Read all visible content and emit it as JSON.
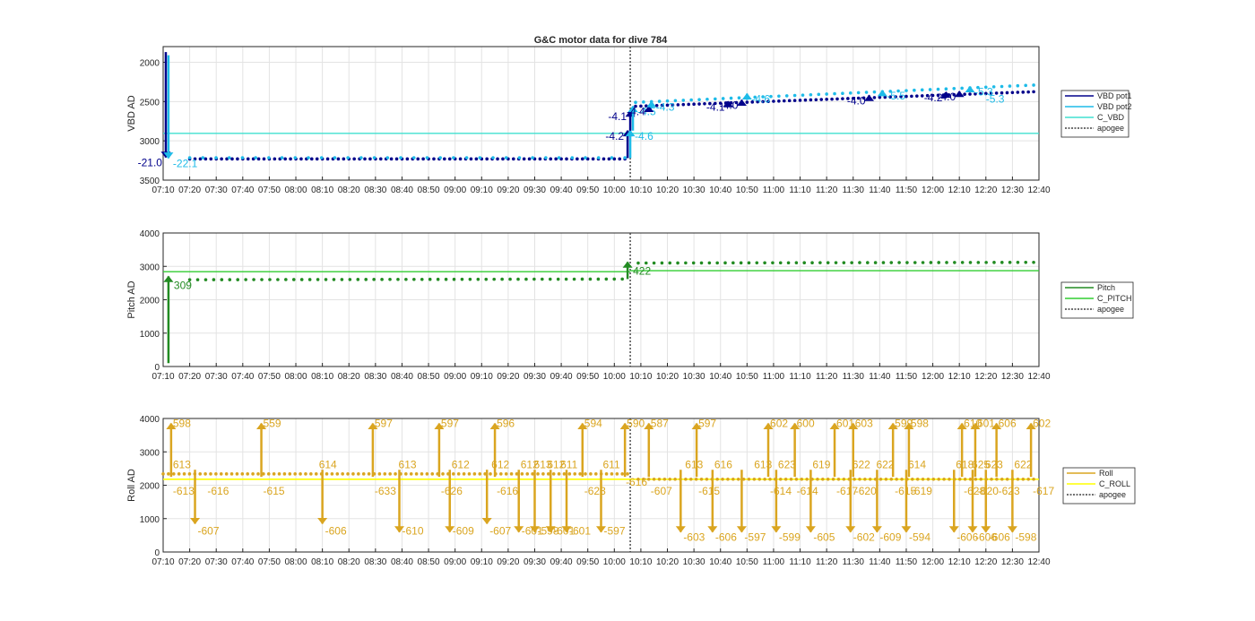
{
  "title": "G&C motor data for dive 784",
  "x_ticks": [
    "07:10",
    "07:20",
    "07:30",
    "07:40",
    "07:50",
    "08:00",
    "08:10",
    "08:20",
    "08:30",
    "08:40",
    "08:50",
    "09:00",
    "09:10",
    "09:20",
    "09:30",
    "09:40",
    "09:50",
    "10:00",
    "10:10",
    "10:20",
    "10:30",
    "10:40",
    "10:50",
    "11:00",
    "11:10",
    "11:20",
    "11:30",
    "11:40",
    "11:50",
    "12:00",
    "12:10",
    "12:20",
    "12:30",
    "12:40"
  ],
  "colors": {
    "vbd1": "#00008b",
    "vbd2": "#1ebbe8",
    "cvbd": "#40e0d0",
    "pitch": "#228b22",
    "cpitch": "#32cd32",
    "roll": "#daa520",
    "croll": "#ffff00",
    "apogee": "#404040"
  },
  "chart_data": [
    {
      "type": "scatter",
      "ylabel": "VBD AD",
      "y_ticks": [
        "2000",
        "2500",
        "3000",
        "3500"
      ],
      "ylim": [
        3500,
        1800
      ],
      "y_reversed": true,
      "xlim": [
        "07:10",
        "12:40"
      ],
      "grid": true,
      "legend_position": "right",
      "legend": [
        "VBD pot1",
        "VBD pot2",
        "C_VBD",
        "apogee"
      ],
      "apogee_time": "10:06",
      "reference_line": {
        "name": "C_VBD",
        "y": 2905
      },
      "series": [
        {
          "name": "VBD pot1",
          "segments": [
            {
              "x": [
                "07:20",
                "10:04"
              ],
              "y": [
                3230,
                3230
              ]
            },
            {
              "x": [
                "10:08",
                "12:38"
              ],
              "y": [
                2560,
                2375
              ]
            }
          ]
        },
        {
          "name": "VBD pot2",
          "segments": [
            {
              "x": [
                "07:20",
                "10:04"
              ],
              "y": [
                3215,
                3215
              ]
            },
            {
              "x": [
                "10:08",
                "12:38"
              ],
              "y": [
                2510,
                2290
              ]
            }
          ]
        }
      ],
      "arrows": [
        {
          "series": "VBD pot1",
          "x": "07:11",
          "y0": 1870,
          "y1": 3210,
          "label": "-21.0",
          "label_side": "left"
        },
        {
          "series": "VBD pot2",
          "x": "07:12",
          "y0": 1910,
          "y1": 3220,
          "label": "-22.1",
          "label_side": "right"
        },
        {
          "series": "VBD pot1",
          "x": "10:05",
          "y0": 3220,
          "y1": 2870,
          "label": "-4.2",
          "label_side": "left"
        },
        {
          "series": "VBD pot2",
          "x": "10:06",
          "y0": 3220,
          "y1": 2870,
          "label": "-4.6",
          "label_side": "right"
        },
        {
          "series": "VBD pot1",
          "x": "10:06",
          "y0": 2870,
          "y1": 2620,
          "label": "-4.1",
          "label_side": "left"
        },
        {
          "series": "VBD pot2",
          "x": "10:07",
          "y0": 2870,
          "y1": 2560,
          "label": "-4.5",
          "label_side": "right"
        },
        {
          "series": "VBD pot1",
          "x": "10:13",
          "y0": 2620,
          "y1": 2560,
          "label": "-4.4",
          "label_side": "left"
        },
        {
          "series": "VBD pot2",
          "x": "10:14",
          "y0": 2580,
          "y1": 2500,
          "label": "-4.3",
          "label_side": "right"
        },
        {
          "series": "VBD pot1",
          "x": "10:43",
          "y0": 2560,
          "y1": 2500,
          "label": "-4.1",
          "label_side": "left"
        },
        {
          "series": "VBD pot1",
          "x": "10:48",
          "y0": 2540,
          "y1": 2480,
          "label": "-4.0",
          "label_side": "left"
        },
        {
          "series": "VBD pot2",
          "x": "10:50",
          "y0": 2480,
          "y1": 2400,
          "label": "-4.6",
          "label_side": "right"
        },
        {
          "series": "VBD pot1",
          "x": "11:36",
          "y0": 2470,
          "y1": 2420,
          "label": "-4.0",
          "label_side": "left"
        },
        {
          "series": "VBD pot2",
          "x": "11:41",
          "y0": 2430,
          "y1": 2360,
          "label": "-5.5",
          "label_side": "right"
        },
        {
          "series": "VBD pot1",
          "x": "12:05",
          "y0": 2430,
          "y1": 2380,
          "label": "-4.2",
          "label_side": "left"
        },
        {
          "series": "VBD pot1",
          "x": "12:10",
          "y0": 2420,
          "y1": 2370,
          "label": "-4.0",
          "label_side": "left"
        },
        {
          "series": "VBD pot2",
          "x": "12:14",
          "y0": 2380,
          "y1": 2310,
          "label": "-5.3",
          "label_side": "right"
        }
      ],
      "extra_labels": [
        {
          "series": "VBD pot2",
          "x": "12:20",
          "y": 2420,
          "label": "-5.3"
        }
      ]
    },
    {
      "type": "scatter",
      "ylabel": "Pitch AD",
      "y_ticks": [
        "0",
        "1000",
        "2000",
        "3000",
        "4000"
      ],
      "ylim": [
        0,
        4000
      ],
      "xlim": [
        "07:10",
        "12:40"
      ],
      "grid": true,
      "legend_position": "right",
      "legend": [
        "Pitch",
        "C_PITCH",
        "apogee"
      ],
      "apogee_time": "10:06",
      "reference_lines": [
        {
          "name": "C_PITCH",
          "x": [
            "07:10",
            "10:06"
          ],
          "y": 2840
        },
        {
          "name": "C_PITCH",
          "x": [
            "10:06",
            "12:40"
          ],
          "y": 2870
        }
      ],
      "series": [
        {
          "name": "Pitch",
          "segments": [
            {
              "x": [
                "07:20",
                "10:03"
              ],
              "y": [
                2600,
                2620
              ]
            },
            {
              "x": [
                "10:09",
                "12:38"
              ],
              "y": [
                3100,
                3120
              ]
            }
          ]
        }
      ],
      "arrows": [
        {
          "series": "Pitch",
          "x": "07:12",
          "y0": 100,
          "y1": 2700,
          "label": "309",
          "label_side": "right"
        },
        {
          "series": "Pitch",
          "x": "10:05",
          "y0": 2620,
          "y1": 3130,
          "label": "422",
          "label_side": "right"
        }
      ]
    },
    {
      "type": "scatter",
      "ylabel": "Roll AD",
      "y_ticks": [
        "0",
        "1000",
        "2000",
        "3000",
        "4000"
      ],
      "ylim": [
        0,
        4000
      ],
      "xlim": [
        "07:10",
        "12:40"
      ],
      "grid": true,
      "legend_position": "right",
      "legend": [
        "Roll",
        "C_ROLL",
        "apogee"
      ],
      "apogee_time": "10:06",
      "reference_line": {
        "name": "C_ROLL",
        "y": 2180
      },
      "series": [
        {
          "name": "Roll",
          "segments": [
            {
              "x": [
                "07:10",
                "10:05"
              ],
              "y": [
                2340,
                2340
              ]
            },
            {
              "x": [
                "10:09",
                "12:38"
              ],
              "y": [
                2180,
                2180
              ]
            }
          ]
        }
      ],
      "pairs": [
        {
          "x": "07:13",
          "top": "598",
          "bot": "-613"
        },
        {
          "x": "07:26",
          "top": "",
          "bot": "-616"
        },
        {
          "x": "07:47",
          "top": "559",
          "bot": "-615"
        },
        {
          "x": "08:29",
          "top": "597",
          "bot": "-633"
        },
        {
          "x": "08:54",
          "top": "597",
          "bot": "-626"
        },
        {
          "x": "09:15",
          "top": "596",
          "bot": "-616"
        },
        {
          "x": "09:48",
          "top": "594",
          "bot": "-623"
        },
        {
          "x": "10:04",
          "top": "590",
          "bot": ""
        },
        {
          "x": "10:13",
          "top": "587",
          "bot": "-607"
        },
        {
          "x": "10:31",
          "top": "597",
          "bot": "-615"
        },
        {
          "x": "10:58",
          "top": "602",
          "bot": "-614"
        },
        {
          "x": "11:08",
          "top": "600",
          "bot": "-614"
        },
        {
          "x": "11:23",
          "top": "601",
          "bot": "-617"
        },
        {
          "x": "11:30",
          "top": "603",
          "bot": "-620"
        },
        {
          "x": "11:45",
          "top": "599",
          "bot": "-615"
        },
        {
          "x": "11:51",
          "top": "598",
          "bot": "-619"
        },
        {
          "x": "12:11",
          "top": "610",
          "bot": "-628"
        },
        {
          "x": "12:16",
          "top": "601",
          "bot": "-620"
        },
        {
          "x": "12:24",
          "top": "606",
          "bot": "-623"
        },
        {
          "x": "12:37",
          "top": "602",
          "bot": "-617"
        }
      ],
      "drops": [
        {
          "x": "07:22",
          "label": "-607"
        },
        {
          "x": "08:10",
          "label": "-606"
        },
        {
          "x": "08:39",
          "label": "-610"
        },
        {
          "x": "08:58",
          "label": "-609"
        },
        {
          "x": "09:12",
          "label": "-607"
        },
        {
          "x": "09:24",
          "label": "-601"
        },
        {
          "x": "09:30",
          "label": "-598"
        },
        {
          "x": "09:36",
          "label": "-601"
        },
        {
          "x": "09:42",
          "label": "-601"
        },
        {
          "x": "09:55",
          "label": "-597"
        },
        {
          "x": "10:25",
          "label": "-603"
        },
        {
          "x": "10:37",
          "label": "-606"
        },
        {
          "x": "10:48",
          "label": "-597"
        },
        {
          "x": "11:01",
          "label": "-599"
        },
        {
          "x": "11:14",
          "label": "-605"
        },
        {
          "x": "11:29",
          "label": "-602"
        },
        {
          "x": "11:39",
          "label": "-609"
        },
        {
          "x": "11:50",
          "label": "-594"
        },
        {
          "x": "12:08",
          "label": "-606"
        },
        {
          "x": "12:15",
          "label": "-606"
        },
        {
          "x": "12:20",
          "label": "-606"
        },
        {
          "x": "12:30",
          "label": "-598"
        }
      ],
      "mid_labels": [
        {
          "x": "07:13",
          "label": "613"
        },
        {
          "x": "08:08",
          "label": "614"
        },
        {
          "x": "08:38",
          "label": "613"
        },
        {
          "x": "08:58",
          "label": "612"
        },
        {
          "x": "09:13",
          "label": "612"
        },
        {
          "x": "09:24",
          "label": "612"
        },
        {
          "x": "09:29",
          "label": "613"
        },
        {
          "x": "09:34",
          "label": "612"
        },
        {
          "x": "09:39",
          "label": "611"
        },
        {
          "x": "09:55",
          "label": "611"
        },
        {
          "x": "10:26",
          "label": "613"
        },
        {
          "x": "10:37",
          "label": "616"
        },
        {
          "x": "10:52",
          "label": "613"
        },
        {
          "x": "11:01",
          "label": "623"
        },
        {
          "x": "11:14",
          "label": "619"
        },
        {
          "x": "11:29",
          "label": "622"
        },
        {
          "x": "11:38",
          "label": "622"
        },
        {
          "x": "11:50",
          "label": "614"
        },
        {
          "x": "12:08",
          "label": "618"
        },
        {
          "x": "12:14",
          "label": "625"
        },
        {
          "x": "12:19",
          "label": "623"
        },
        {
          "x": "12:30",
          "label": "622"
        }
      ],
      "apogee_label": "-616"
    }
  ]
}
